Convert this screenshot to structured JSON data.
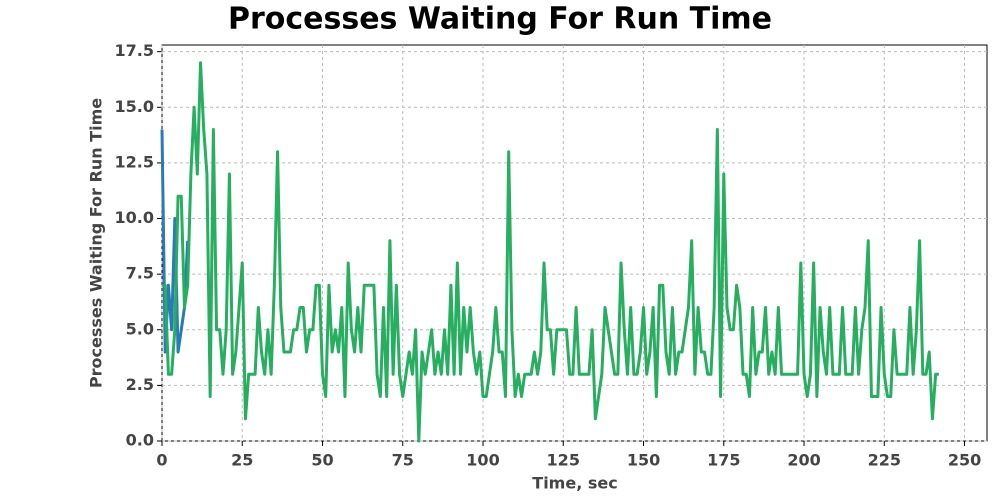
{
  "chart_data": {
    "type": "line",
    "title": "Processes Waiting For Run Time",
    "x_label": "Time, sec",
    "y_label": "Processes Waiting For Run Time",
    "xlim": [
      0,
      257
    ],
    "ylim": [
      0,
      17.8
    ],
    "xticks": [
      0,
      25,
      50,
      75,
      100,
      125,
      150,
      175,
      200,
      225,
      250
    ],
    "yticks": [
      {
        "value": 0,
        "label": "0.0"
      },
      {
        "value": 2.5,
        "label": "2.5"
      },
      {
        "value": 5,
        "label": "5.0"
      },
      {
        "value": 7.5,
        "label": "7.5"
      },
      {
        "value": 10,
        "label": "10.0"
      },
      {
        "value": 12.5,
        "label": "12.5"
      },
      {
        "value": 15,
        "label": "15.0"
      },
      {
        "value": 17.5,
        "label": "17.5"
      }
    ],
    "grid": true,
    "series": [
      {
        "color": "#2a7ab8",
        "x": [
          0,
          1,
          2,
          3,
          4,
          5,
          6,
          7,
          8
        ],
        "values": [
          14,
          4,
          7,
          5,
          10,
          4,
          5,
          6,
          9
        ]
      },
      {
        "color": "#27ae60",
        "x": [
          0,
          1,
          2,
          3,
          4,
          5,
          6,
          7,
          8,
          9,
          10,
          11,
          12,
          13,
          14,
          15,
          16,
          17,
          18,
          19,
          20,
          21,
          22,
          23,
          24,
          25,
          26,
          27,
          28,
          29,
          30,
          31,
          32,
          33,
          34,
          35,
          36,
          37,
          38,
          39,
          40,
          41,
          42,
          43,
          44,
          45,
          46,
          47,
          48,
          49,
          50,
          51,
          52,
          53,
          54,
          55,
          56,
          57,
          58,
          59,
          60,
          61,
          62,
          63,
          64,
          65,
          66,
          67,
          68,
          69,
          70,
          71,
          72,
          73,
          74,
          75,
          76,
          77,
          78,
          79,
          80,
          81,
          82,
          83,
          84,
          85,
          86,
          87,
          88,
          89,
          90,
          91,
          92,
          93,
          94,
          95,
          96,
          97,
          98,
          99,
          100,
          101,
          102,
          103,
          104,
          105,
          106,
          107,
          108,
          109,
          110,
          111,
          112,
          113,
          114,
          115,
          116,
          117,
          118,
          119,
          120,
          121,
          122,
          123,
          124,
          125,
          126,
          127,
          128,
          129,
          130,
          131,
          132,
          133,
          134,
          135,
          136,
          137,
          138,
          139,
          140,
          141,
          142,
          143,
          144,
          145,
          146,
          147,
          148,
          149,
          150,
          151,
          152,
          153,
          154,
          155,
          156,
          157,
          158,
          159,
          160,
          161,
          162,
          163,
          164,
          165,
          166,
          167,
          168,
          169,
          170,
          171,
          172,
          173,
          174,
          175,
          176,
          177,
          178,
          179,
          180,
          181,
          182,
          183,
          184,
          185,
          186,
          187,
          188,
          189,
          190,
          191,
          192,
          193,
          194,
          195,
          196,
          197,
          198,
          199,
          200,
          201,
          202,
          203,
          204,
          205,
          206,
          207,
          208,
          209,
          210,
          211,
          212,
          213,
          214,
          215,
          216,
          217,
          218,
          219,
          220,
          221,
          222,
          223,
          224,
          225,
          226,
          227,
          228,
          229,
          230,
          231,
          232,
          233,
          234,
          235,
          236,
          237,
          238,
          239,
          240,
          241,
          242
        ],
        "values": [
          7,
          7,
          3,
          3,
          5,
          11,
          11,
          6,
          7,
          12,
          15,
          12,
          17,
          14,
          12,
          2,
          14,
          5,
          5,
          3,
          5,
          12,
          3,
          4,
          6,
          8,
          1,
          3,
          3,
          3,
          6,
          4,
          3,
          5,
          3,
          7,
          13,
          6,
          4,
          4,
          4,
          5,
          5,
          6,
          6,
          4,
          5,
          5,
          7,
          7,
          3,
          2,
          7,
          4,
          5,
          4,
          6,
          2,
          8,
          5,
          4,
          6,
          4,
          7,
          7,
          7,
          7,
          3,
          2,
          6,
          2,
          9,
          3,
          7,
          3,
          2,
          3,
          4,
          3,
          5,
          0,
          4,
          3,
          4,
          5,
          3,
          4,
          3,
          5,
          3,
          7,
          3,
          8,
          3,
          6,
          4,
          6,
          4,
          3,
          4,
          2,
          2,
          3,
          4,
          6,
          4,
          4,
          2,
          13,
          5,
          2,
          3,
          2,
          3,
          3,
          3,
          4,
          3,
          4,
          8,
          5,
          5,
          3,
          5,
          5,
          5,
          5,
          3,
          3,
          6,
          3,
          3,
          3,
          3,
          5,
          1,
          2,
          3,
          6,
          5,
          4,
          3,
          3,
          8,
          5,
          3,
          6,
          3,
          3,
          4,
          6,
          3,
          4,
          6,
          2,
          7,
          7,
          4,
          3,
          6,
          3,
          4,
          4,
          5,
          6,
          9,
          3,
          6,
          4,
          4,
          3,
          3,
          6,
          14,
          2,
          12,
          6,
          5,
          5,
          7,
          6,
          3,
          3,
          2,
          6,
          3,
          4,
          4,
          6,
          3,
          4,
          3,
          6,
          3,
          3,
          3,
          3,
          3,
          3,
          8,
          3,
          2,
          3,
          8,
          2,
          6,
          4,
          3,
          6,
          3,
          3,
          3,
          6,
          3,
          3,
          3,
          6,
          3,
          5,
          6,
          9,
          2,
          2,
          2,
          6,
          3,
          2,
          2,
          5,
          3,
          3,
          3,
          3,
          6,
          3,
          5,
          9,
          3,
          3,
          4,
          1,
          3,
          3
        ]
      }
    ]
  }
}
